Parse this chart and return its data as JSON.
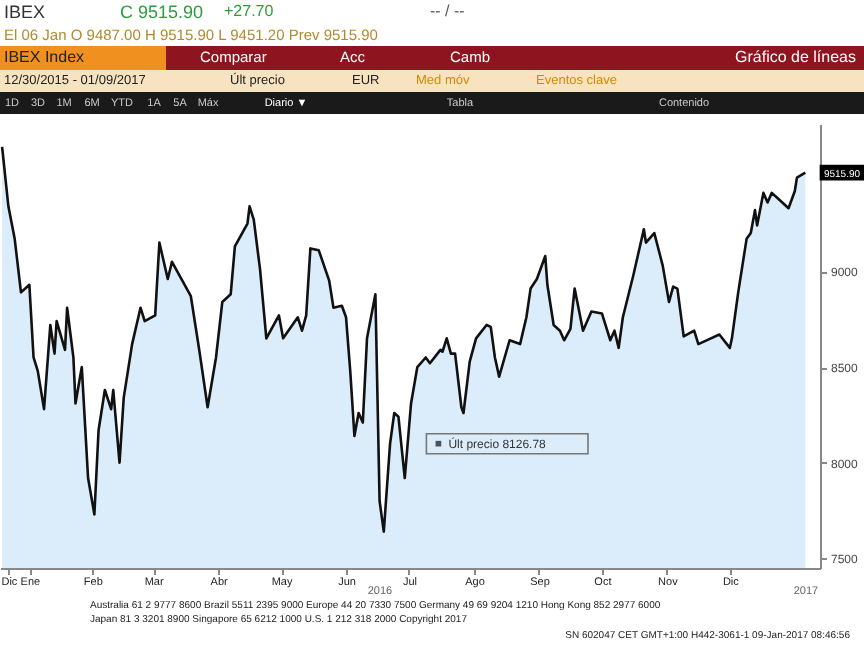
{
  "chart_data": {
    "type": "area",
    "title": "IBEX Index",
    "x": [
      "2015-12-20",
      "2015-12-23",
      "2015-12-26",
      "2015-12-29",
      "2016-01-02",
      "2016-01-04",
      "2016-01-06",
      "2016-01-09",
      "2016-01-12",
      "2016-01-14",
      "2016-01-15",
      "2016-01-19",
      "2016-01-20",
      "2016-01-23",
      "2016-01-24",
      "2016-01-27",
      "2016-01-30",
      "2016-02-02",
      "2016-02-04",
      "2016-02-07",
      "2016-02-10",
      "2016-02-11",
      "2016-02-14",
      "2016-02-16",
      "2016-02-20",
      "2016-02-24",
      "2016-02-26",
      "2016-03-02",
      "2016-03-04",
      "2016-03-08",
      "2016-03-10",
      "2016-03-15",
      "2016-03-19",
      "2016-03-23",
      "2016-03-27",
      "2016-03-31",
      "2016-04-03",
      "2016-04-07",
      "2016-04-09",
      "2016-04-15",
      "2016-04-16",
      "2016-04-18",
      "2016-04-21",
      "2016-04-24",
      "2016-04-30",
      "2016-05-02",
      "2016-05-09",
      "2016-05-11",
      "2016-05-13",
      "2016-05-15",
      "2016-05-19",
      "2016-05-24",
      "2016-05-26",
      "2016-05-30",
      "2016-06-01",
      "2016-06-03",
      "2016-06-05",
      "2016-06-07",
      "2016-06-09",
      "2016-06-11",
      "2016-06-15",
      "2016-06-17",
      "2016-06-19",
      "2016-06-22",
      "2016-06-24",
      "2016-06-26",
      "2016-06-29",
      "2016-07-02",
      "2016-07-05",
      "2016-07-09",
      "2016-07-11",
      "2016-07-16",
      "2016-07-17",
      "2016-07-19",
      "2016-07-21",
      "2016-07-23",
      "2016-07-26",
      "2016-07-27",
      "2016-07-30",
      "2016-08-02",
      "2016-08-07",
      "2016-08-09",
      "2016-08-11",
      "2016-08-13",
      "2016-08-18",
      "2016-08-23",
      "2016-08-26",
      "2016-08-28",
      "2016-08-31",
      "2016-09-04",
      "2016-09-05",
      "2016-09-08",
      "2016-09-11",
      "2016-09-13",
      "2016-09-16",
      "2016-09-18",
      "2016-09-22",
      "2016-09-26",
      "2016-10-01",
      "2016-10-05",
      "2016-10-07",
      "2016-10-09",
      "2016-10-11",
      "2016-10-16",
      "2016-10-21",
      "2016-10-22",
      "2016-10-26",
      "2016-10-30",
      "2016-11-02",
      "2016-11-04",
      "2016-11-06",
      "2016-11-09",
      "2016-11-14",
      "2016-11-16",
      "2016-11-22",
      "2016-11-26",
      "2016-12-01",
      "2016-12-02",
      "2016-12-05",
      "2016-12-09",
      "2016-12-11",
      "2016-12-13",
      "2016-12-14",
      "2016-12-17",
      "2016-12-19",
      "2016-12-21",
      "2016-12-25",
      "2016-12-29",
      "2017-01-01",
      "2017-01-02",
      "2017-01-06"
    ],
    "series": [
      {
        "name": "Últ precio 8126.78",
        "color": "#cce4fa",
        "values": [
          9650,
          9340,
          9170,
          8890,
          8930,
          8550,
          8480,
          8280,
          8720,
          8570,
          8740,
          8590,
          8810,
          8550,
          8310,
          8500,
          7920,
          7730,
          8170,
          8380,
          8280,
          8380,
          8000,
          8340,
          8620,
          8810,
          8740,
          8770,
          9150,
          8960,
          9050,
          8950,
          8870,
          8590,
          8290,
          8550,
          8840,
          8880,
          9130,
          9250,
          9340,
          9270,
          9010,
          8650,
          8770,
          8650,
          8760,
          8690,
          8770,
          9120,
          9110,
          8950,
          8810,
          8820,
          8760,
          8480,
          8140,
          8260,
          8210,
          8650,
          8880,
          7800,
          7640,
          8100,
          8260,
          8240,
          7920,
          8310,
          8500,
          8550,
          8520,
          8590,
          8580,
          8650,
          8570,
          8570,
          8290,
          8260,
          8530,
          8650,
          8720,
          8710,
          8550,
          8450,
          8640,
          8620,
          8760,
          8910,
          8960,
          9080,
          8930,
          8720,
          8690,
          8640,
          8700,
          8910,
          8690,
          8790,
          8780,
          8640,
          8690,
          8600,
          8760,
          8980,
          9220,
          9150,
          9200,
          9030,
          8840,
          8920,
          8910,
          8660,
          8690,
          8620,
          8650,
          8670,
          8600,
          8650,
          8890,
          9170,
          9200,
          9320,
          9240,
          9410,
          9360,
          9410,
          9370,
          9330,
          9420,
          9490,
          9515.9
        ]
      }
    ],
    "xlim": [
      "2015-12-19",
      "2017-01-13"
    ],
    "xticks": [
      {
        "value": "2015-12-23",
        "label": "Dic"
      },
      {
        "value": "2016-01-02",
        "label": "Ene"
      },
      {
        "value": "2016-02-01",
        "label": "Feb"
      },
      {
        "value": "2016-03-01",
        "label": "Mar"
      },
      {
        "value": "2016-04-01",
        "label": "Abr"
      },
      {
        "value": "2016-05-01",
        "label": "May"
      },
      {
        "value": "2016-06-01",
        "label": "Jun"
      },
      {
        "value": "2016-07-01",
        "label": "Jul"
      },
      {
        "value": "2016-08-01",
        "label": "Ago"
      },
      {
        "value": "2016-09-01",
        "label": "Sep"
      },
      {
        "value": "2016-10-01",
        "label": "Oct"
      },
      {
        "value": "2016-11-01",
        "label": "Nov"
      },
      {
        "value": "2016-12-01",
        "label": "Dic"
      }
    ],
    "ylim": [
      7450,
      9770
    ],
    "yticks": [
      7500,
      8000,
      8500,
      9000
    ],
    "grid": false,
    "legend": "bottom",
    "annotations": [
      {
        "text": "9515.90",
        "y": 9515.9
      },
      "IBEX",
      "C 9515.90",
      "+27.70",
      "-- / --",
      "El 06 Jan   O 9487.00  H 9515.90  L 9451.20  Prev 9515.90",
      "Comparar",
      "Acc",
      "Camb",
      "Gráfico de líneas",
      "12/30/2015 - 01/09/2017",
      "Últ precio",
      "EUR",
      "Med móv",
      "Eventos clave",
      "1D",
      "3D",
      "1M",
      "6M",
      "YTD",
      "1A",
      "5A",
      "Máx",
      "Diario ▼",
      "Tabla",
      "Contenido",
      "Australia 61 2 9777 8600 Brazil 5511 2395 9000 Europe 44 20 7330 7500 Germany 49 69 9204 1210 Hong Kong 852 2977 6000",
      "Japan 81 3 3201 8900     Singapore 65 6212 1000     U.S. 1 212 318 2000     Copyright 2017",
      "SN 602047 CET  GMT+1:00 H442-3061-1 09-Jan-2017 08:46:56",
      "2016",
      "2017"
    ]
  }
}
